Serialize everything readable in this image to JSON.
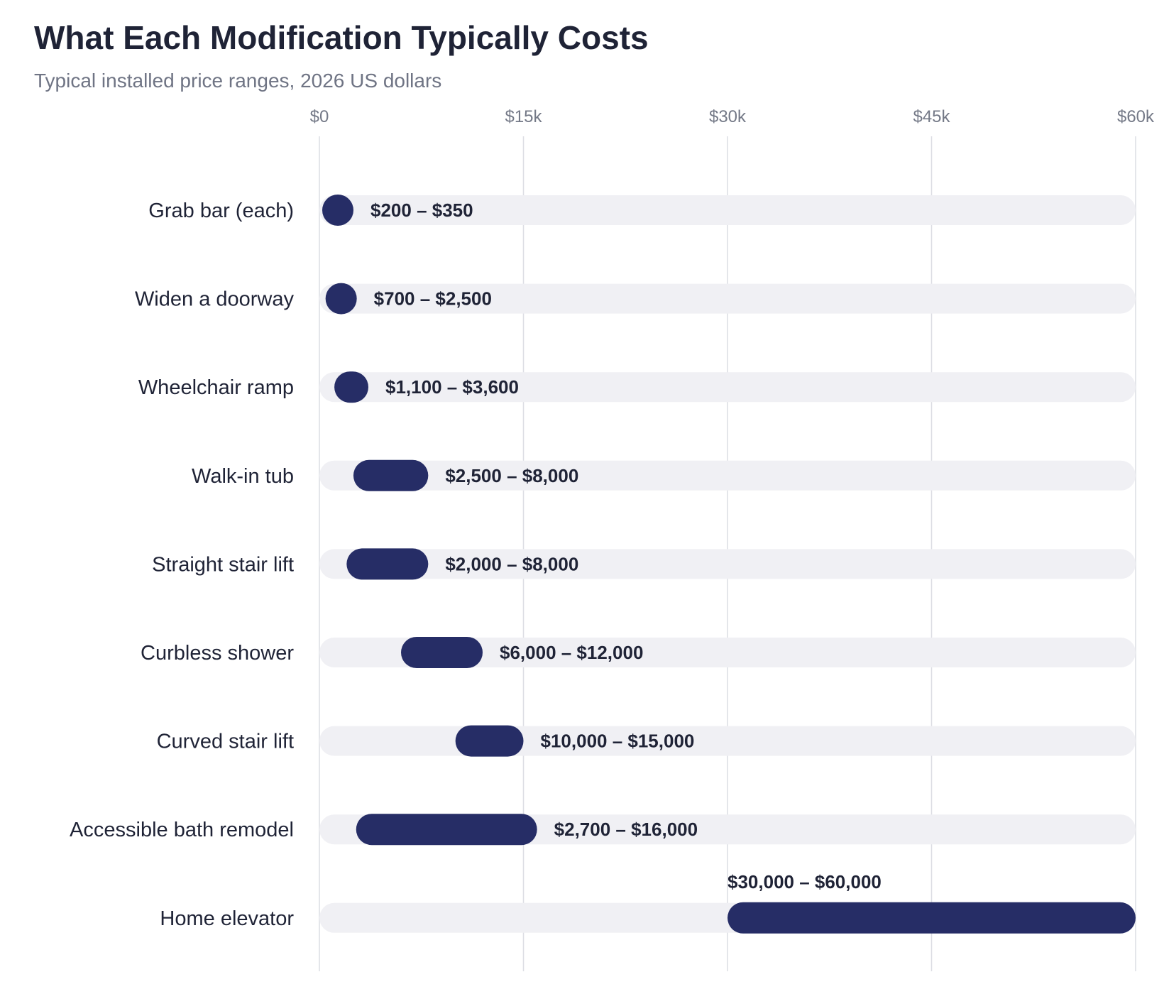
{
  "header": {
    "title": "What Each Modification Typically Costs",
    "subtitle": "Typical installed price ranges, 2026 US dollars"
  },
  "colors": {
    "bar": "#262d66",
    "track": "#f0f0f4",
    "grid": "#dcdde3",
    "text": "#1f2336",
    "muted": "#747987"
  },
  "chart_data": {
    "type": "bar",
    "orientation": "horizontal-range",
    "title": "What Each Modification Typically Costs",
    "subtitle": "Typical installed price ranges, 2026 US dollars",
    "xlabel": "",
    "ylabel": "",
    "xlim": [
      0,
      60000
    ],
    "x_ticks": [
      0,
      15000,
      30000,
      45000,
      60000
    ],
    "x_tick_labels": [
      "$0",
      "$15k",
      "$30k",
      "$45k",
      "$60k"
    ],
    "grid": true,
    "legend": "none",
    "categories": [
      "Grab bar (each)",
      "Widen a doorway",
      "Wheelchair ramp",
      "Walk-in tub",
      "Straight stair lift",
      "Curbless shower",
      "Curved stair lift",
      "Accessible bath remodel",
      "Home elevator"
    ],
    "ranges": [
      {
        "low": 200,
        "high": 350,
        "label": "$200 – $350"
      },
      {
        "low": 700,
        "high": 2500,
        "label": "$700 – $2,500"
      },
      {
        "low": 1100,
        "high": 3600,
        "label": "$1,100 – $3,600"
      },
      {
        "low": 2500,
        "high": 8000,
        "label": "$2,500 – $8,000"
      },
      {
        "low": 2000,
        "high": 8000,
        "label": "$2,000 – $8,000"
      },
      {
        "low": 6000,
        "high": 12000,
        "label": "$6,000 – $12,000"
      },
      {
        "low": 10000,
        "high": 15000,
        "label": "$10,000 – $15,000"
      },
      {
        "low": 2700,
        "high": 16000,
        "label": "$2,700 – $16,000"
      },
      {
        "low": 30000,
        "high": 60000,
        "label": "$30,000 – $60,000"
      }
    ]
  }
}
